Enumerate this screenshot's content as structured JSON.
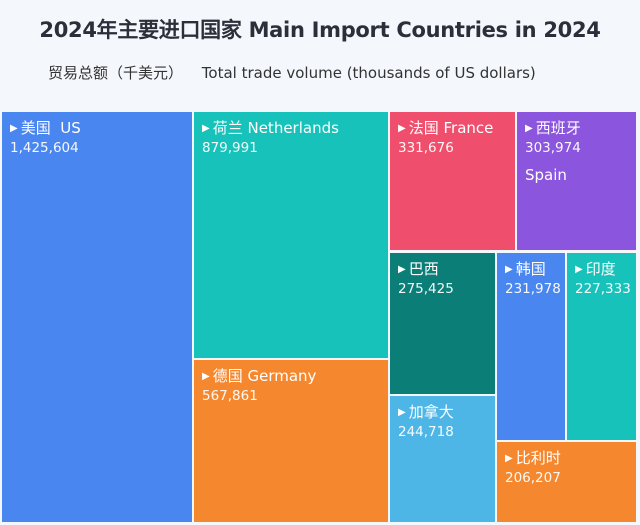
{
  "chart_data": {
    "type": "treemap",
    "title": "2024年主要进口国家 Main Import Countries in 2024",
    "subtitle_cn": "贸易总额（千美元）",
    "subtitle_en": "Total trade volume (thousands of US dollars)",
    "items": [
      {
        "name": "美国",
        "name_en": "US",
        "value": 1425604,
        "value_label": "1,425,604",
        "color": "#4a86f0"
      },
      {
        "name": "荷兰",
        "name_en": "Netherlands",
        "value": 879991,
        "value_label": "879,991",
        "color": "#16c2b9"
      },
      {
        "name": "德国",
        "name_en": "Germany",
        "value": 567861,
        "value_label": "567,861",
        "color": "#f5882f"
      },
      {
        "name": "法国",
        "name_en": "France",
        "value": 331676,
        "value_label": "331,676",
        "color": "#ef4f6d"
      },
      {
        "name": "西班牙",
        "name_en": "Spain",
        "value": 303974,
        "value_label": "303,974",
        "color": "#8c55de"
      },
      {
        "name": "巴西",
        "name_en": "",
        "value": 275425,
        "value_label": "275,425",
        "color": "#0b7e78"
      },
      {
        "name": "加拿大",
        "name_en": "",
        "value": 244718,
        "value_label": "244,718",
        "color": "#4db6e6"
      },
      {
        "name": "韩国",
        "name_en": "",
        "value": 231978,
        "value_label": "231,978",
        "color": "#4a86f0"
      },
      {
        "name": "印度",
        "name_en": "",
        "value": 227333,
        "value_label": "227,333",
        "color": "#16c2b9"
      },
      {
        "name": "比利时",
        "name_en": "",
        "value": 206207,
        "value_label": "206,207",
        "color": "#f5882f"
      }
    ]
  }
}
